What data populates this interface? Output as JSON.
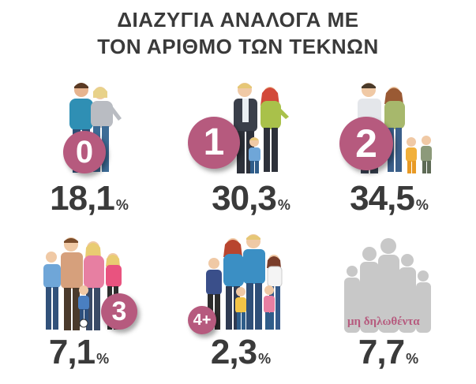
{
  "title": {
    "line1": "ΔΙΑΖΥΓΙΑ ΑΝΑΛΟΓΑ ΜΕ",
    "line2": "ΤΟΝ ΑΡΙΘΜΟ ΤΩΝ ΤΕΚΝΩΝ"
  },
  "colors": {
    "badge": "#b65a7e",
    "text": "#3a3a3a",
    "muted_figure": "#c8c8c8"
  },
  "chart_data": {
    "type": "pictogram",
    "title": "ΔΙΑΖΥΓΙΑ ΑΝΑΛΟΓΑ ΜΕ ΤΟΝ ΑΡΙΘΜΟ ΤΩΝ ΤΕΚΝΩΝ",
    "categories": [
      "0",
      "1",
      "2",
      "3",
      "4+",
      "μη δηλωθέντα"
    ],
    "values": [
      18.1,
      30.3,
      34.5,
      7.1,
      2.3,
      7.7
    ],
    "value_labels": [
      "18,1",
      "30,3",
      "34,5",
      "7,1",
      "2,3",
      "7,7"
    ],
    "unit": "%"
  },
  "items": [
    {
      "badge": "0",
      "value": "18,1",
      "unit": "%"
    },
    {
      "badge": "1",
      "value": "30,3",
      "unit": "%"
    },
    {
      "badge": "2",
      "value": "34,5",
      "unit": "%"
    },
    {
      "badge": "3",
      "value": "7,1",
      "unit": "%"
    },
    {
      "badge": "4+",
      "value": "2,3",
      "unit": "%"
    },
    {
      "badge": "μη δηλωθέντα",
      "value": "7,7",
      "unit": "%"
    }
  ]
}
